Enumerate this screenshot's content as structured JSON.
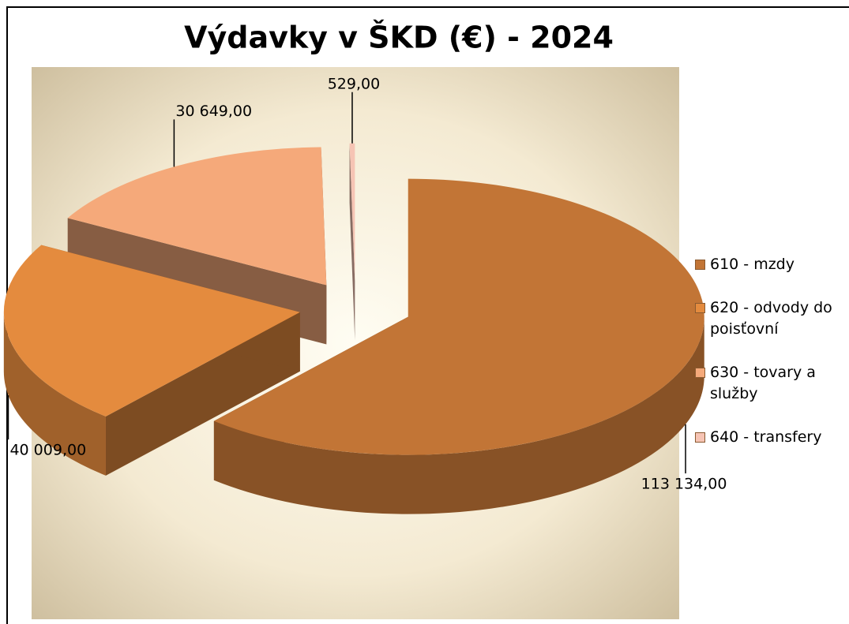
{
  "chart_data": {
    "type": "pie",
    "title": "Výdavky v ŠKD (€) - 2024",
    "categories": [
      "610 - mzdy",
      "620 - odvody do poisťovní",
      "630 - tovary a služby",
      "640 - transfery"
    ],
    "values": [
      113134,
      40009,
      30649,
      529
    ],
    "value_labels": [
      "113 134,00",
      "40 009,00",
      "30 649,00",
      "529,00"
    ],
    "colors": [
      "#c27536",
      "#e48b3e",
      "#f5a97a",
      "#f6c4b4"
    ],
    "legend": "right"
  }
}
